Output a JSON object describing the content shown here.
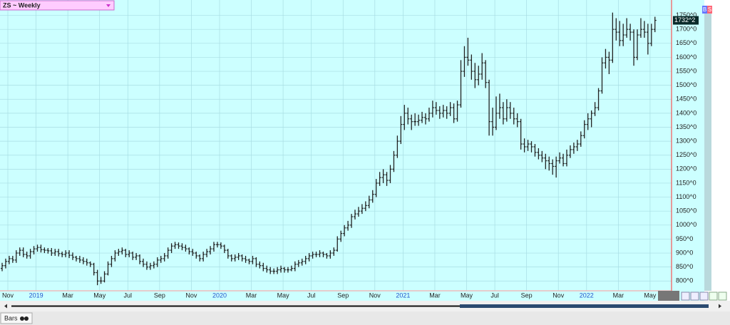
{
  "header": {
    "title": "ZS ~ Weekly"
  },
  "ui": {
    "buy": "B",
    "sell": "S",
    "tab": "Bars"
  },
  "chart_data": {
    "type": "ohlc",
    "color": "#222222",
    "grid": true,
    "ylim": [
      765,
      1805
    ],
    "yticks": [
      {
        "value": 800,
        "label": "800^0"
      },
      {
        "value": 850,
        "label": "850^0"
      },
      {
        "value": 900,
        "label": "900^0"
      },
      {
        "value": 950,
        "label": "950^0"
      },
      {
        "value": 1000,
        "label": "1000^0"
      },
      {
        "value": 1050,
        "label": "1050^0"
      },
      {
        "value": 1100,
        "label": "1100^0"
      },
      {
        "value": 1150,
        "label": "1150^0"
      },
      {
        "value": 1200,
        "label": "1200^0"
      },
      {
        "value": 1250,
        "label": "1250^0"
      },
      {
        "value": 1300,
        "label": "1300^0"
      },
      {
        "value": 1350,
        "label": "1350^0"
      },
      {
        "value": 1400,
        "label": "1400^0"
      },
      {
        "value": 1450,
        "label": "1450^0"
      },
      {
        "value": 1500,
        "label": "1500^0"
      },
      {
        "value": 1550,
        "label": "1550^0"
      },
      {
        "value": 1600,
        "label": "1600^0"
      },
      {
        "value": 1650,
        "label": "1650^0"
      },
      {
        "value": 1700,
        "label": "1700^0"
      },
      {
        "value": 1750,
        "label": "1750^0"
      }
    ],
    "close_label": "1732^2",
    "categories": [
      "Nov",
      null,
      null,
      null,
      null,
      null,
      null,
      null,
      "2019",
      null,
      null,
      null,
      null,
      null,
      null,
      null,
      null,
      "Mar",
      null,
      null,
      null,
      null,
      null,
      null,
      null,
      null,
      "May",
      null,
      null,
      null,
      null,
      null,
      null,
      null,
      "Jul",
      null,
      null,
      null,
      null,
      null,
      null,
      null,
      null,
      "Sep",
      null,
      null,
      null,
      null,
      null,
      null,
      null,
      null,
      "Nov",
      null,
      null,
      null,
      null,
      null,
      null,
      null,
      "2020",
      null,
      null,
      null,
      null,
      null,
      null,
      null,
      null,
      "Mar",
      null,
      null,
      null,
      null,
      null,
      null,
      null,
      null,
      "May",
      null,
      null,
      null,
      null,
      null,
      null,
      null,
      "Jul",
      null,
      null,
      null,
      null,
      null,
      null,
      null,
      null,
      "Sep",
      null,
      null,
      null,
      null,
      null,
      null,
      null,
      null,
      "Nov",
      null,
      null,
      null,
      null,
      null,
      null,
      null,
      "2021",
      null,
      null,
      null,
      null,
      null,
      null,
      null,
      null,
      "Mar",
      null,
      null,
      null,
      null,
      null,
      null,
      null,
      null,
      "May",
      null,
      null,
      null,
      null,
      null,
      null,
      null,
      "Jul",
      null,
      null,
      null,
      null,
      null,
      null,
      null,
      null,
      "Sep",
      null,
      null,
      null,
      null,
      null,
      null,
      null,
      null,
      "Nov",
      null,
      null,
      null,
      null,
      null,
      null,
      null,
      "2022",
      null,
      null,
      null,
      null,
      null,
      null,
      null,
      null,
      "Mar",
      null,
      null,
      null,
      null,
      null,
      null,
      null,
      null,
      "May",
      null,
      null,
      null
    ],
    "bars": [
      [
        845,
        865,
        835,
        855
      ],
      [
        855,
        880,
        845,
        870
      ],
      [
        870,
        890,
        860,
        880
      ],
      [
        880,
        890,
        865,
        875
      ],
      [
        875,
        910,
        865,
        900
      ],
      [
        900,
        920,
        890,
        910
      ],
      [
        910,
        920,
        885,
        895
      ],
      [
        895,
        905,
        880,
        890
      ],
      [
        890,
        915,
        880,
        905
      ],
      [
        905,
        925,
        895,
        915
      ],
      [
        915,
        930,
        905,
        920
      ],
      [
        920,
        930,
        902,
        912
      ],
      [
        912,
        920,
        900,
        910
      ],
      [
        910,
        918,
        898,
        908
      ],
      [
        908,
        918,
        890,
        900
      ],
      [
        900,
        915,
        890,
        905
      ],
      [
        905,
        915,
        888,
        898
      ],
      [
        898,
        905,
        885,
        895
      ],
      [
        895,
        910,
        885,
        900
      ],
      [
        900,
        910,
        882,
        892
      ],
      [
        892,
        902,
        875,
        885
      ],
      [
        885,
        890,
        870,
        880
      ],
      [
        880,
        890,
        865,
        875
      ],
      [
        875,
        885,
        860,
        870
      ],
      [
        870,
        880,
        855,
        865
      ],
      [
        865,
        870,
        850,
        860
      ],
      [
        860,
        865,
        820,
        830
      ],
      [
        830,
        840,
        785,
        800
      ],
      [
        800,
        815,
        790,
        800
      ],
      [
        800,
        835,
        795,
        825
      ],
      [
        825,
        870,
        820,
        860
      ],
      [
        860,
        890,
        850,
        880
      ],
      [
        880,
        910,
        870,
        900
      ],
      [
        900,
        915,
        890,
        905
      ],
      [
        905,
        920,
        895,
        910
      ],
      [
        910,
        915,
        885,
        895
      ],
      [
        895,
        910,
        885,
        900
      ],
      [
        900,
        905,
        875,
        885
      ],
      [
        885,
        900,
        875,
        890
      ],
      [
        890,
        895,
        860,
        870
      ],
      [
        870,
        880,
        850,
        860
      ],
      [
        860,
        870,
        840,
        850
      ],
      [
        850,
        865,
        840,
        855
      ],
      [
        855,
        870,
        845,
        860
      ],
      [
        860,
        885,
        850,
        875
      ],
      [
        875,
        890,
        865,
        880
      ],
      [
        880,
        900,
        870,
        890
      ],
      [
        890,
        920,
        880,
        910
      ],
      [
        910,
        935,
        900,
        925
      ],
      [
        925,
        940,
        915,
        930
      ],
      [
        930,
        938,
        915,
        925
      ],
      [
        925,
        935,
        910,
        920
      ],
      [
        920,
        930,
        905,
        915
      ],
      [
        915,
        920,
        895,
        905
      ],
      [
        905,
        915,
        890,
        900
      ],
      [
        900,
        905,
        880,
        890
      ],
      [
        890,
        895,
        870,
        880
      ],
      [
        880,
        905,
        870,
        895
      ],
      [
        895,
        915,
        885,
        905
      ],
      [
        905,
        925,
        895,
        915
      ],
      [
        915,
        940,
        905,
        930
      ],
      [
        930,
        940,
        920,
        930
      ],
      [
        930,
        938,
        915,
        925
      ],
      [
        925,
        930,
        900,
        910
      ],
      [
        910,
        915,
        880,
        890
      ],
      [
        890,
        895,
        870,
        880
      ],
      [
        880,
        895,
        870,
        885
      ],
      [
        885,
        900,
        875,
        890
      ],
      [
        890,
        895,
        870,
        880
      ],
      [
        880,
        890,
        865,
        875
      ],
      [
        875,
        880,
        860,
        870
      ],
      [
        870,
        890,
        860,
        880
      ],
      [
        880,
        885,
        850,
        860
      ],
      [
        860,
        870,
        845,
        855
      ],
      [
        855,
        865,
        835,
        845
      ],
      [
        845,
        855,
        830,
        840
      ],
      [
        840,
        850,
        825,
        835
      ],
      [
        835,
        845,
        825,
        835
      ],
      [
        835,
        850,
        825,
        840
      ],
      [
        840,
        855,
        830,
        845
      ],
      [
        845,
        850,
        830,
        840
      ],
      [
        840,
        850,
        830,
        840
      ],
      [
        840,
        855,
        835,
        845
      ],
      [
        845,
        870,
        835,
        860
      ],
      [
        860,
        875,
        850,
        865
      ],
      [
        865,
        880,
        855,
        870
      ],
      [
        870,
        890,
        860,
        880
      ],
      [
        880,
        900,
        870,
        890
      ],
      [
        890,
        905,
        880,
        895
      ],
      [
        895,
        905,
        885,
        895
      ],
      [
        895,
        910,
        885,
        900
      ],
      [
        900,
        905,
        885,
        895
      ],
      [
        895,
        900,
        880,
        890
      ],
      [
        890,
        910,
        880,
        900
      ],
      [
        900,
        920,
        890,
        910
      ],
      [
        910,
        960,
        905,
        950
      ],
      [
        950,
        980,
        940,
        970
      ],
      [
        970,
        1000,
        960,
        990
      ],
      [
        990,
        1015,
        980,
        1000
      ],
      [
        1000,
        1040,
        990,
        1030
      ],
      [
        1030,
        1055,
        1020,
        1040
      ],
      [
        1040,
        1065,
        1030,
        1050
      ],
      [
        1050,
        1075,
        1040,
        1060
      ],
      [
        1060,
        1085,
        1050,
        1070
      ],
      [
        1070,
        1105,
        1060,
        1090
      ],
      [
        1090,
        1125,
        1080,
        1110
      ],
      [
        1110,
        1165,
        1100,
        1150
      ],
      [
        1150,
        1190,
        1140,
        1170
      ],
      [
        1170,
        1200,
        1150,
        1180
      ],
      [
        1180,
        1190,
        1140,
        1160
      ],
      [
        1160,
        1215,
        1150,
        1200
      ],
      [
        1200,
        1265,
        1190,
        1250
      ],
      [
        1250,
        1320,
        1240,
        1300
      ],
      [
        1300,
        1390,
        1290,
        1360
      ],
      [
        1360,
        1430,
        1340,
        1400
      ],
      [
        1400,
        1420,
        1360,
        1380
      ],
      [
        1380,
        1395,
        1340,
        1370
      ],
      [
        1370,
        1400,
        1355,
        1370
      ],
      [
        1370,
        1395,
        1355,
        1375
      ],
      [
        1375,
        1405,
        1365,
        1385
      ],
      [
        1385,
        1400,
        1360,
        1380
      ],
      [
        1380,
        1420,
        1370,
        1400
      ],
      [
        1400,
        1445,
        1385,
        1420
      ],
      [
        1420,
        1440,
        1395,
        1410
      ],
      [
        1410,
        1425,
        1380,
        1400
      ],
      [
        1400,
        1430,
        1385,
        1410
      ],
      [
        1410,
        1425,
        1380,
        1400
      ],
      [
        1400,
        1440,
        1390,
        1420
      ],
      [
        1420,
        1435,
        1365,
        1380
      ],
      [
        1380,
        1445,
        1370,
        1430
      ],
      [
        1430,
        1590,
        1420,
        1550
      ],
      [
        1550,
        1640,
        1530,
        1600
      ],
      [
        1600,
        1670,
        1570,
        1590
      ],
      [
        1590,
        1610,
        1520,
        1550
      ],
      [
        1550,
        1580,
        1490,
        1520
      ],
      [
        1520,
        1570,
        1500,
        1540
      ],
      [
        1540,
        1615,
        1520,
        1580
      ],
      [
        1580,
        1590,
        1490,
        1510
      ],
      [
        1510,
        1520,
        1320,
        1370
      ],
      [
        1370,
        1420,
        1320,
        1350
      ],
      [
        1350,
        1460,
        1340,
        1400
      ],
      [
        1400,
        1470,
        1380,
        1420
      ],
      [
        1420,
        1440,
        1360,
        1380
      ],
      [
        1380,
        1450,
        1370,
        1420
      ],
      [
        1420,
        1440,
        1380,
        1400
      ],
      [
        1400,
        1420,
        1360,
        1380
      ],
      [
        1380,
        1400,
        1350,
        1370
      ],
      [
        1370,
        1380,
        1270,
        1290
      ],
      [
        1290,
        1310,
        1260,
        1280
      ],
      [
        1280,
        1305,
        1265,
        1290
      ],
      [
        1290,
        1300,
        1260,
        1280
      ],
      [
        1280,
        1290,
        1245,
        1260
      ],
      [
        1260,
        1275,
        1235,
        1250
      ],
      [
        1250,
        1265,
        1225,
        1240
      ],
      [
        1240,
        1255,
        1200,
        1230
      ],
      [
        1230,
        1245,
        1195,
        1220
      ],
      [
        1220,
        1235,
        1180,
        1210
      ],
      [
        1210,
        1245,
        1170,
        1230
      ],
      [
        1230,
        1260,
        1220,
        1240
      ],
      [
        1240,
        1255,
        1210,
        1220
      ],
      [
        1220,
        1270,
        1210,
        1250
      ],
      [
        1250,
        1285,
        1240,
        1270
      ],
      [
        1270,
        1295,
        1255,
        1280
      ],
      [
        1280,
        1305,
        1265,
        1290
      ],
      [
        1290,
        1335,
        1280,
        1320
      ],
      [
        1320,
        1375,
        1310,
        1360
      ],
      [
        1360,
        1400,
        1340,
        1380
      ],
      [
        1380,
        1410,
        1350,
        1400
      ],
      [
        1400,
        1440,
        1390,
        1420
      ],
      [
        1420,
        1490,
        1410,
        1480
      ],
      [
        1480,
        1600,
        1470,
        1580
      ],
      [
        1580,
        1630,
        1560,
        1600
      ],
      [
        1600,
        1620,
        1540,
        1590
      ],
      [
        1590,
        1760,
        1580,
        1700
      ],
      [
        1700,
        1740,
        1660,
        1690
      ],
      [
        1690,
        1730,
        1640,
        1660
      ],
      [
        1660,
        1720,
        1640,
        1680
      ],
      [
        1680,
        1740,
        1670,
        1700
      ],
      [
        1700,
        1720,
        1660,
        1690
      ],
      [
        1690,
        1700,
        1570,
        1600
      ],
      [
        1600,
        1700,
        1590,
        1680
      ],
      [
        1680,
        1740,
        1670,
        1700
      ],
      [
        1700,
        1730,
        1670,
        1690
      ],
      [
        1690,
        1720,
        1610,
        1650
      ],
      [
        1650,
        1720,
        1640,
        1700
      ],
      [
        1700,
        1745,
        1690,
        1732.25
      ]
    ]
  }
}
